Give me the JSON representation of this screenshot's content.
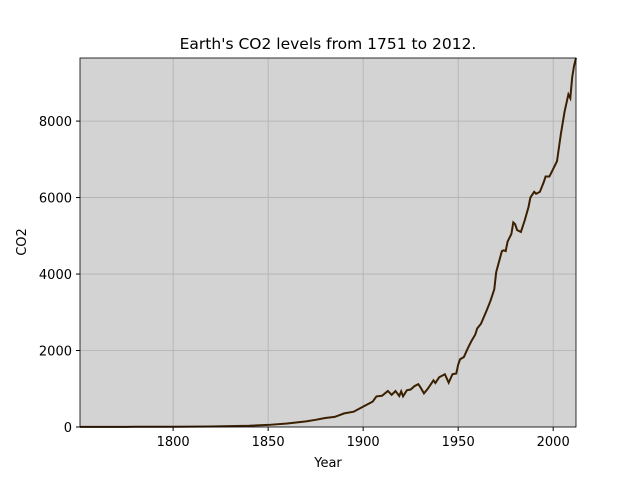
{
  "chart_data": {
    "type": "line",
    "title": "Earth's CO2 levels from 1751 to 2012.",
    "x_label": "Year",
    "y_label": "CO2",
    "x": [
      1751,
      1760,
      1770,
      1780,
      1790,
      1800,
      1810,
      1820,
      1830,
      1840,
      1850,
      1860,
      1870,
      1875,
      1880,
      1885,
      1890,
      1895,
      1900,
      1905,
      1907,
      1910,
      1913,
      1915,
      1917,
      1919,
      1920,
      1921,
      1923,
      1925,
      1927,
      1929,
      1930,
      1932,
      1934,
      1937,
      1938,
      1940,
      1943,
      1945,
      1947,
      1949,
      1950,
      1951,
      1953,
      1955,
      1957,
      1959,
      1960,
      1962,
      1965,
      1967,
      1969,
      1970,
      1973,
      1974,
      1975,
      1976,
      1978,
      1979,
      1980,
      1981,
      1983,
      1985,
      1987,
      1988,
      1990,
      1991,
      1993,
      1995,
      1996,
      1998,
      2000,
      2002,
      2004,
      2006,
      2008,
      2009,
      2010,
      2011,
      2012
    ],
    "series": [
      {
        "name": "CO2",
        "color": "#3b2000",
        "values": [
          3,
          3,
          4,
          5,
          7,
          8,
          10,
          14,
          24,
          33,
          54,
          91,
          147,
          188,
          236,
          264,
          356,
          400,
          534,
          663,
          800,
          819,
          943,
          840,
          940,
          810,
          932,
          803,
          960,
          980,
          1070,
          1120,
          1050,
          880,
          1000,
          1220,
          1150,
          1300,
          1380,
          1160,
          1380,
          1400,
          1630,
          1770,
          1830,
          2050,
          2250,
          2420,
          2577,
          2700,
          3050,
          3300,
          3600,
          4050,
          4600,
          4620,
          4600,
          4850,
          5050,
          5350,
          5300,
          5150,
          5100,
          5400,
          5750,
          6000,
          6150,
          6100,
          6150,
          6400,
          6550,
          6550,
          6750,
          6950,
          7650,
          8250,
          8700,
          8600,
          9150,
          9450,
          9650
        ]
      }
    ],
    "xlim": [
      1751,
      2012
    ],
    "ylim": [
      0,
      9650
    ],
    "xticks": [
      1800,
      1850,
      1900,
      1950,
      2000
    ],
    "yticks": [
      0,
      2000,
      4000,
      6000,
      8000
    ],
    "grid": true
  }
}
